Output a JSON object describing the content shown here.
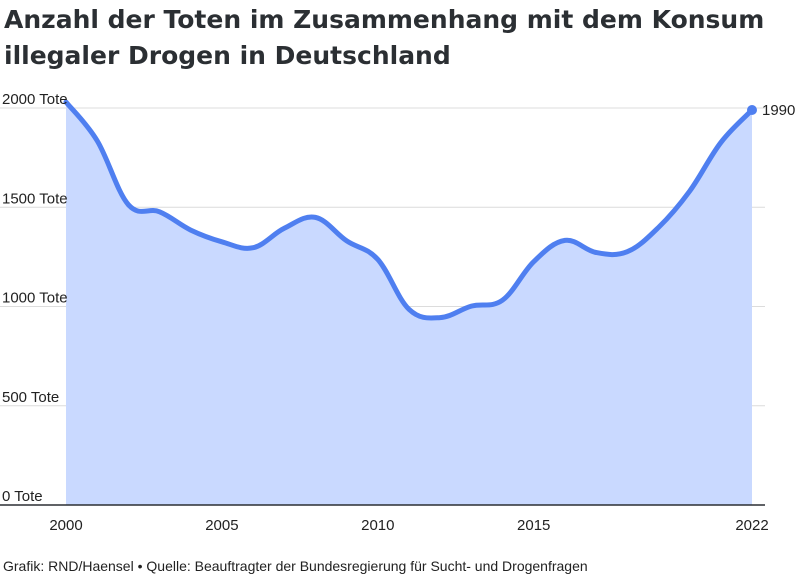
{
  "title": "Anzahl der Toten im Zusammenhang mit dem Konsum illegaler Drogen in Deutschland",
  "footer": {
    "credit": "Grafik: RND/Haensel",
    "separator": "•",
    "source": "Quelle: Beauftragter der Bundesregierung für Sucht- und Drogenfragen"
  },
  "colors": {
    "line": "#4f7ff0",
    "area": "#c9d9ff",
    "grid": "#dcdcdc",
    "axis": "#2b2f33"
  },
  "chart_data": {
    "type": "area",
    "title": "Anzahl der Toten im Zusammenhang mit dem Konsum illegaler Drogen in Deutschland",
    "xlabel": "",
    "ylabel": "",
    "x": [
      2000,
      2001,
      2002,
      2003,
      2004,
      2005,
      2006,
      2007,
      2008,
      2009,
      2010,
      2011,
      2012,
      2013,
      2014,
      2015,
      2016,
      2017,
      2018,
      2019,
      2020,
      2021,
      2022
    ],
    "values": [
      2030,
      1835,
      1513,
      1477,
      1385,
      1326,
      1296,
      1394,
      1449,
      1331,
      1237,
      986,
      944,
      1002,
      1032,
      1226,
      1333,
      1272,
      1276,
      1398,
      1581,
      1826,
      1990
    ],
    "ylim": [
      0,
      2000
    ],
    "xlim": [
      2000,
      2022
    ],
    "y_ticks": [
      {
        "value": 0,
        "label": "0 Tote"
      },
      {
        "value": 500,
        "label": "500 Tote"
      },
      {
        "value": 1000,
        "label": "1000 Tote"
      },
      {
        "value": 1500,
        "label": "1500 Tote"
      },
      {
        "value": 2000,
        "label": "2000 Tote"
      }
    ],
    "x_ticks": [
      {
        "value": 2000,
        "label": "2000"
      },
      {
        "value": 2005,
        "label": "2005"
      },
      {
        "value": 2010,
        "label": "2010"
      },
      {
        "value": 2015,
        "label": "2015"
      },
      {
        "value": 2022,
        "label": "2022"
      }
    ],
    "end_label": "1990",
    "grid": true,
    "legend": "none"
  }
}
